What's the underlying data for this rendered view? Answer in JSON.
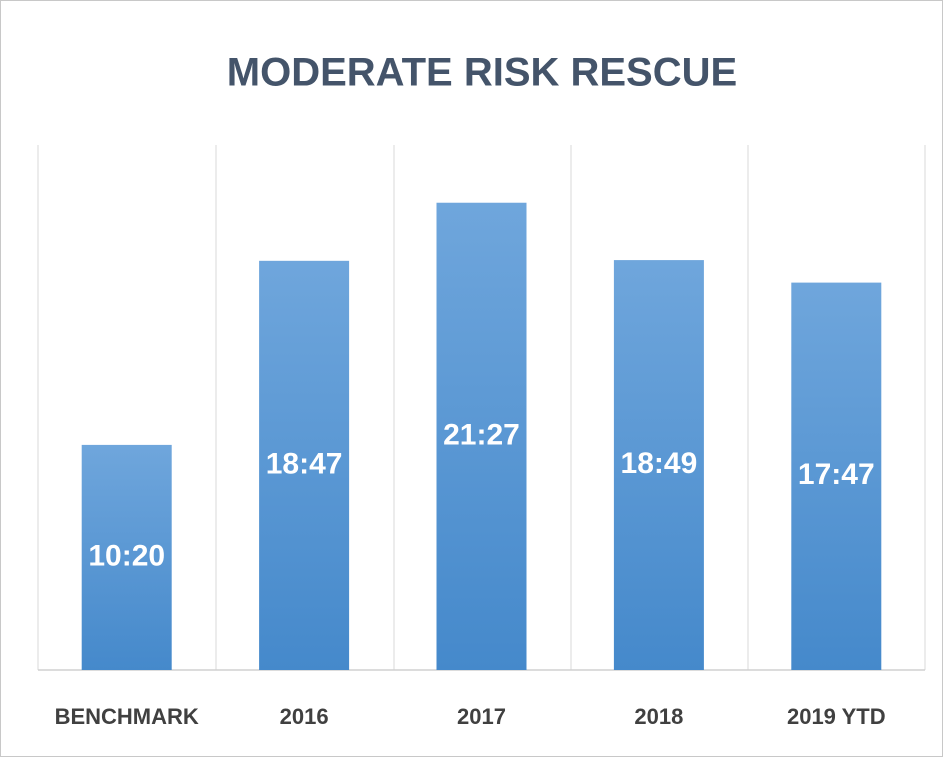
{
  "chart_data": {
    "type": "bar",
    "title": "MODERATE RISK RESCUE",
    "categories": [
      "BENCHMARK",
      "2016",
      "2017",
      "2018",
      "2019 YTD"
    ],
    "values": [
      620,
      1127,
      1287,
      1129,
      1067
    ],
    "value_labels": [
      "10:20",
      "18:47",
      "21:27",
      "18:49",
      "17:47"
    ],
    "color": "#5b9bd5",
    "ylim": [
      0,
      1446
    ]
  }
}
